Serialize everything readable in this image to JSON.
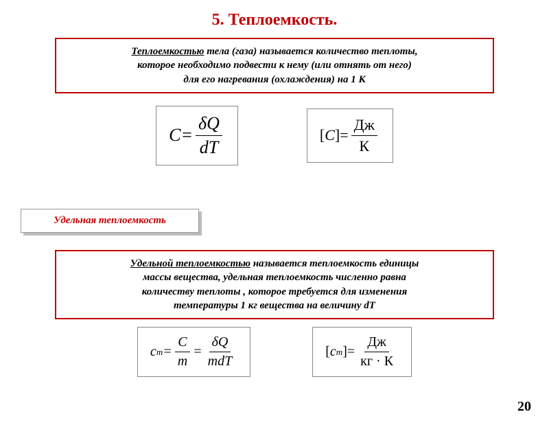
{
  "title": "5. Теплоемкость.",
  "definition1": {
    "line1_u": "Теплоемкостью",
    "line1_rest": " тела (газа) называется количество теплоты,",
    "line2": "которое необходимо подвести к нему (или отнять от него)",
    "line3": "для его нагревания (охлаждения) на 1 К"
  },
  "formula1": {
    "lhs": "C",
    "eq": " = ",
    "num": "δQ",
    "den": "dT"
  },
  "unit1": {
    "lhs_open": "[",
    "lhs_var": "C",
    "lhs_close": "]",
    "eq": " = ",
    "num": "Дж",
    "den": "К"
  },
  "sub_label": "Удельная теплоемкость",
  "definition2": {
    "line1_u": "Удельной теплоемкостью",
    "line1_rest": " называется теплоемкость единицы",
    "line2": "массы вещества, удельная теплоемкость численно равна",
    "line3": "количеству теплоты , которое требуется для изменения",
    "line4": "температуры 1 кг вещества на величину dT"
  },
  "formula2": {
    "lhs_c": "c",
    "lhs_sub": "m",
    "eq": " = ",
    "num1": "C",
    "den1": "m",
    "eq2": " = ",
    "num2": "δQ",
    "den2": "mdT"
  },
  "unit2": {
    "open": "[",
    "c": "c",
    "sub": "m",
    "close": "]",
    "eq": " = ",
    "num": "Дж",
    "den": "кг · К"
  },
  "page_number": "20",
  "colors": {
    "accent": "#c00000",
    "border": "#c00000",
    "text": "#000000",
    "shadow": "#bdbdbd",
    "bg": "#ffffff"
  }
}
